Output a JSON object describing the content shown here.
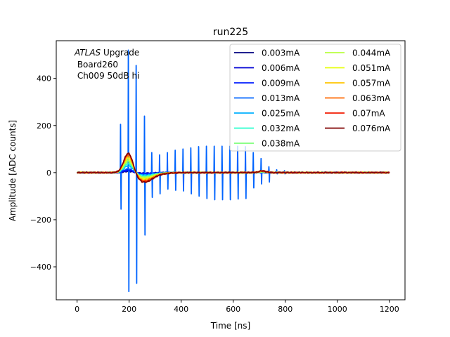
{
  "chart_data": {
    "type": "line",
    "title": "run225",
    "xlabel": "Time [ns]",
    "ylabel": "Amplitude [ADC counts]",
    "xlim": [
      -80,
      1260
    ],
    "ylim": [
      -540,
      560
    ],
    "xticks": [
      0,
      200,
      400,
      600,
      800,
      1000,
      1200
    ],
    "xtick_labels": [
      "0",
      "200",
      "400",
      "600",
      "800",
      "1000",
      "1200"
    ],
    "yticks": [
      -400,
      -200,
      0,
      200,
      400
    ],
    "ytick_labels": [
      "−400",
      "−200",
      "0",
      "200",
      "400"
    ],
    "grid": false,
    "legend_position": "top-right",
    "legend_columns": 2,
    "annotation": {
      "italic": "ATLAS",
      "line1_rest": " Upgrade",
      "line2": " Board260",
      "line3": " Ch009 50dB hi"
    },
    "series": [
      {
        "name": "0.003mA",
        "color": "#00007f",
        "peak": 5,
        "under": -2
      },
      {
        "name": "0.006mA",
        "color": "#0000d4",
        "peak": 8,
        "under": -3
      },
      {
        "name": "0.009mA",
        "color": "#001cff",
        "peak": 12,
        "under": -4
      },
      {
        "name": "0.013mA",
        "color": "#0064ff",
        "peak": 16,
        "under": -6,
        "spikes": [
          [
            168,
            205,
            -155
          ],
          [
            198,
            520,
            -505
          ],
          [
            228,
            455,
            -470
          ],
          [
            260,
            240,
            -265
          ],
          [
            288,
            85,
            -105
          ],
          [
            318,
            75,
            -90
          ],
          [
            348,
            85,
            -70
          ],
          [
            378,
            95,
            -75
          ],
          [
            408,
            100,
            -78
          ],
          [
            438,
            105,
            -90
          ],
          [
            468,
            110,
            -100
          ],
          [
            498,
            112,
            -110
          ],
          [
            528,
            112,
            -115
          ],
          [
            558,
            112,
            -115
          ],
          [
            588,
            112,
            -115
          ],
          [
            618,
            112,
            -112
          ],
          [
            648,
            110,
            -110
          ],
          [
            678,
            85,
            -65
          ],
          [
            708,
            60,
            -48
          ],
          [
            738,
            25,
            -40
          ],
          [
            768,
            12,
            -5
          ],
          [
            798,
            8,
            -5
          ]
        ]
      },
      {
        "name": "0.025mA",
        "color": "#00b0ff",
        "peak": 30,
        "under": -10
      },
      {
        "name": "0.032mA",
        "color": "#29ffce",
        "peak": 40,
        "under": -14
      },
      {
        "name": "0.038mA",
        "color": "#7dff7a",
        "peak": 48,
        "under": -17
      },
      {
        "name": "0.044mA",
        "color": "#b8ff3f",
        "peak": 56,
        "under": -20
      },
      {
        "name": "0.051mA",
        "color": "#e6ff0f",
        "peak": 64,
        "under": -24
      },
      {
        "name": "0.057mA",
        "color": "#ffc400",
        "peak": 72,
        "under": -28
      },
      {
        "name": "0.063mA",
        "color": "#ff6800",
        "peak": 80,
        "under": -32
      },
      {
        "name": "0.07mA",
        "color": "#f21a00",
        "peak": 86,
        "under": -35
      },
      {
        "name": "0.076mA",
        "color": "#7f0000",
        "peak": 90,
        "under": -38
      }
    ],
    "waveform_shape": {
      "x_start": 0,
      "x_end": 1200,
      "x_step": 2,
      "pulse_start_ns": 150,
      "pulse_peak_ns": 198,
      "undershoot_ns": 255,
      "settle_ns": 340,
      "reflection_ns": 712,
      "reflection_fraction": 0.08
    }
  }
}
